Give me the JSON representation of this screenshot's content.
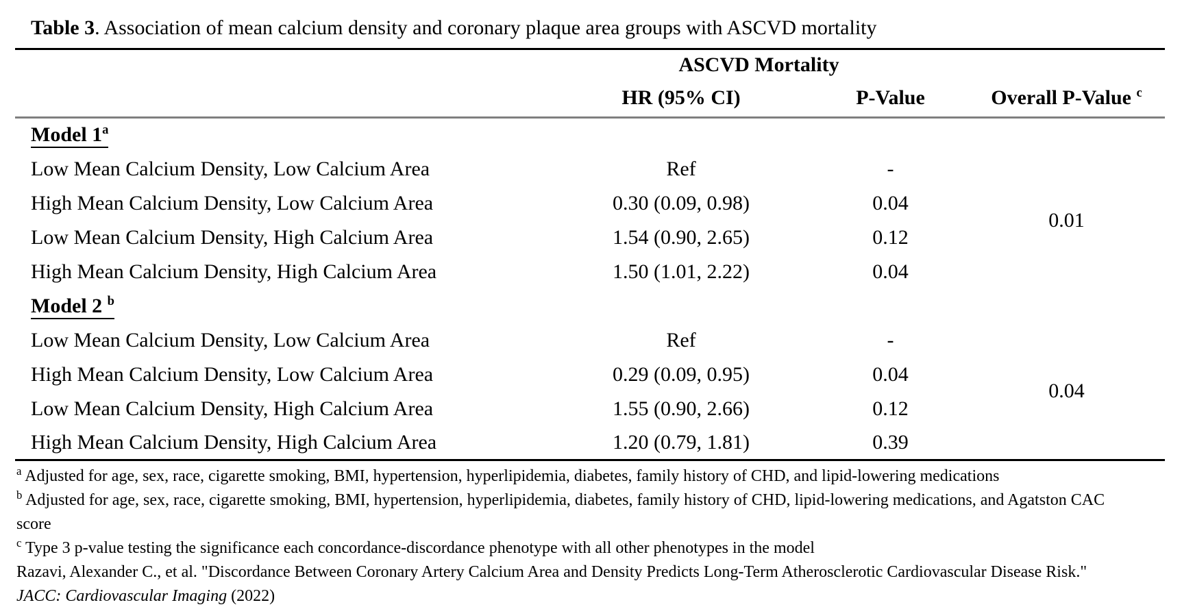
{
  "colors": {
    "background": "#ffffff",
    "text": "#000000",
    "rule_heavy": "#000000",
    "rule_gray": "#7f7f7f"
  },
  "title": {
    "bold": "Table 3",
    "rest": ". Association of mean calcium density and coronary plaque area groups with ASCVD mortality"
  },
  "table": {
    "group_header": "ASCVD Mortality",
    "columns": {
      "hr": "HR (95% CI)",
      "p": "P-Value",
      "overall": "Overall P-Value",
      "overall_sup": "c"
    },
    "sections": [
      {
        "heading": {
          "text": "Model 1",
          "sup": "a"
        },
        "overall_p": "0.01",
        "rows": [
          {
            "label": "Low Mean Calcium Density, Low Calcium Area",
            "hr": "Ref",
            "p": "-"
          },
          {
            "label": "High Mean Calcium Density, Low Calcium Area",
            "hr": "0.30 (0.09, 0.98)",
            "p": "0.04"
          },
          {
            "label": "Low Mean Calcium Density, High Calcium Area",
            "hr": "1.54 (0.90, 2.65)",
            "p": "0.12"
          },
          {
            "label": "High Mean Calcium Density, High Calcium Area",
            "hr": "1.50 (1.01, 2.22)",
            "p": "0.04"
          }
        ]
      },
      {
        "heading": {
          "text": "Model 2 ",
          "sup": "b"
        },
        "overall_p": "0.04",
        "rows": [
          {
            "label": "Low Mean Calcium Density, Low Calcium Area",
            "hr": "Ref",
            "p": "-"
          },
          {
            "label": "High Mean Calcium Density, Low Calcium Area",
            "hr": "0.29 (0.09, 0.95)",
            "p": "0.04"
          },
          {
            "label": "Low Mean Calcium Density, High Calcium Area",
            "hr": "1.55 (0.90, 2.66)",
            "p": "0.12"
          },
          {
            "label": "High Mean Calcium Density, High Calcium Area",
            "hr": "1.20 (0.79, 1.81)",
            "p": "0.39"
          }
        ]
      }
    ]
  },
  "footnotes": [
    {
      "sup": "a",
      "text": "Adjusted for age, sex, race, cigarette smoking, BMI, hypertension, hyperlipidemia, diabetes, family history of CHD, and lipid-lowering medications"
    },
    {
      "sup": "b",
      "text": "Adjusted for age, sex, race, cigarette smoking, BMI, hypertension, hyperlipidemia, diabetes, family history of CHD, lipid-lowering medications, and Agatston CAC score"
    },
    {
      "sup": "c",
      "text": "Type 3 p-value testing the significance each concordance-discordance phenotype with all other phenotypes in the model"
    }
  ],
  "citation": {
    "prefix": "Razavi, Alexander C., et al. \"Discordance Between Coronary Artery Calcium Area and Density Predicts Long-Term Atherosclerotic Cardiovascular Disease Risk.\" ",
    "journal": "JACC: Cardiovascular Imaging",
    "suffix": " (2022)"
  }
}
